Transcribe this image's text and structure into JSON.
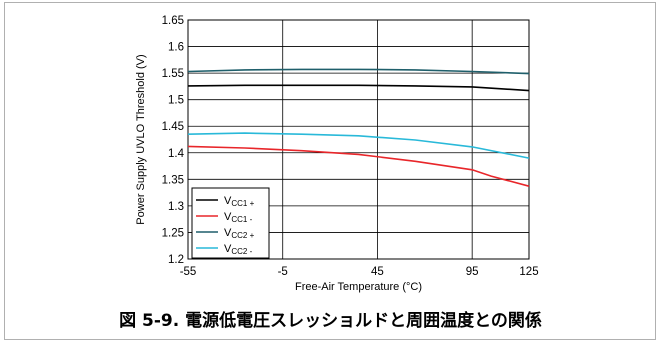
{
  "caption": "図 5-9. 電源低電圧スレッショルドと周囲温度との関係",
  "chart_data": {
    "type": "line",
    "xlabel": "Free-Air Temperature (°C)",
    "ylabel": "Power Supply UVLO Threshold (V)",
    "xlim": [
      -55,
      125
    ],
    "ylim": [
      1.2,
      1.65
    ],
    "x_ticks": [
      -55,
      -5,
      45,
      95,
      125
    ],
    "y_ticks": [
      1.2,
      1.25,
      1.3,
      1.35,
      1.4,
      1.45,
      1.5,
      1.55,
      1.6,
      1.65
    ],
    "grid": true,
    "legend_position": "bottom-left",
    "series": [
      {
        "name": "VCC1 +",
        "label_main": "V",
        "label_sub": "CC1 +",
        "color": "#000000",
        "x": [
          -55,
          -25,
          5,
          35,
          65,
          95,
          125
        ],
        "y": [
          1.526,
          1.527,
          1.527,
          1.527,
          1.526,
          1.524,
          1.517
        ]
      },
      {
        "name": "VCC1 -",
        "label_main": "V",
        "label_sub": "CC1 -",
        "color": "#e8262a",
        "x": [
          -55,
          -25,
          5,
          35,
          65,
          95,
          105,
          125
        ],
        "y": [
          1.412,
          1.409,
          1.404,
          1.397,
          1.384,
          1.368,
          1.356,
          1.337
        ]
      },
      {
        "name": "VCC2 +",
        "label_main": "V",
        "label_sub": "CC2 +",
        "color": "#1f5f6b",
        "x": [
          -55,
          -25,
          5,
          35,
          65,
          95,
          125
        ],
        "y": [
          1.553,
          1.556,
          1.557,
          1.557,
          1.556,
          1.553,
          1.549
        ]
      },
      {
        "name": "VCC2 -",
        "label_main": "V",
        "label_sub": "CC2 -",
        "color": "#29b9d9",
        "x": [
          -55,
          -25,
          5,
          35,
          65,
          95,
          125
        ],
        "y": [
          1.435,
          1.437,
          1.435,
          1.432,
          1.424,
          1.411,
          1.39
        ]
      }
    ]
  }
}
